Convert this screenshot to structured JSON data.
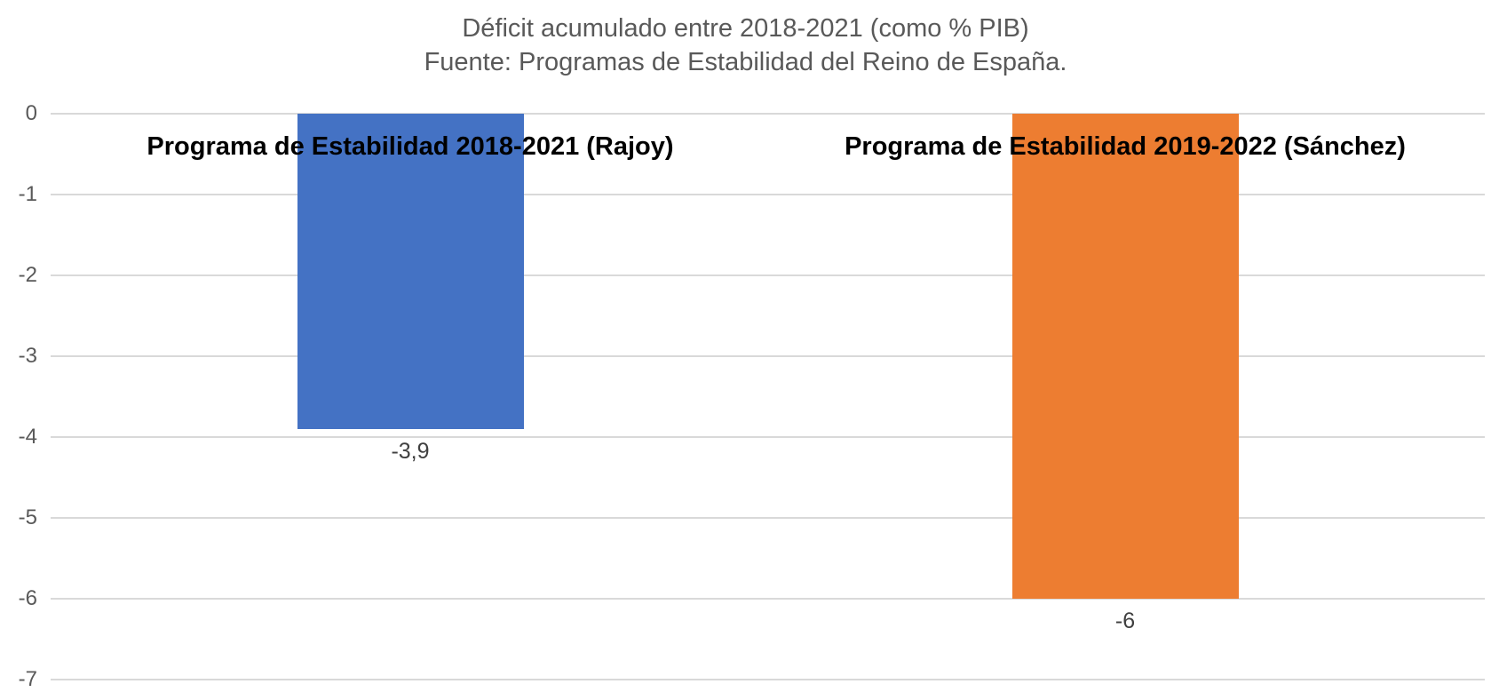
{
  "chart_data": {
    "type": "bar",
    "title": "Déficit acumulado entre 2018-2021 (como % PIB)",
    "subtitle": "Fuente: Programas de Estabilidad del Reino de España.",
    "categories": [
      "Programa de Estabilidad 2018-2021 (Rajoy)",
      "Programa de Estabilidad 2019-2022 (Sánchez)"
    ],
    "values": [
      -3.9,
      -6
    ],
    "value_labels": [
      "-3,9",
      "-6"
    ],
    "bar_colors": [
      "#4472C4",
      "#ED7D31"
    ],
    "xlabel": "",
    "ylabel": "",
    "ylim": [
      -7,
      0
    ],
    "y_ticks": [
      0,
      -1,
      -2,
      -3,
      -4,
      -5,
      -6,
      -7
    ],
    "y_tick_labels": [
      "0",
      "-1",
      "-2",
      "-3",
      "-4",
      "-5",
      "-6",
      "-7"
    ],
    "grid": true,
    "legend_position": "none",
    "gridline_color": "#D9D9D9",
    "axis_label_color": "#595959",
    "title_color": "#595959",
    "category_label_color": "#000000",
    "data_label_color": "#404040",
    "background_color": "#FFFFFF"
  }
}
